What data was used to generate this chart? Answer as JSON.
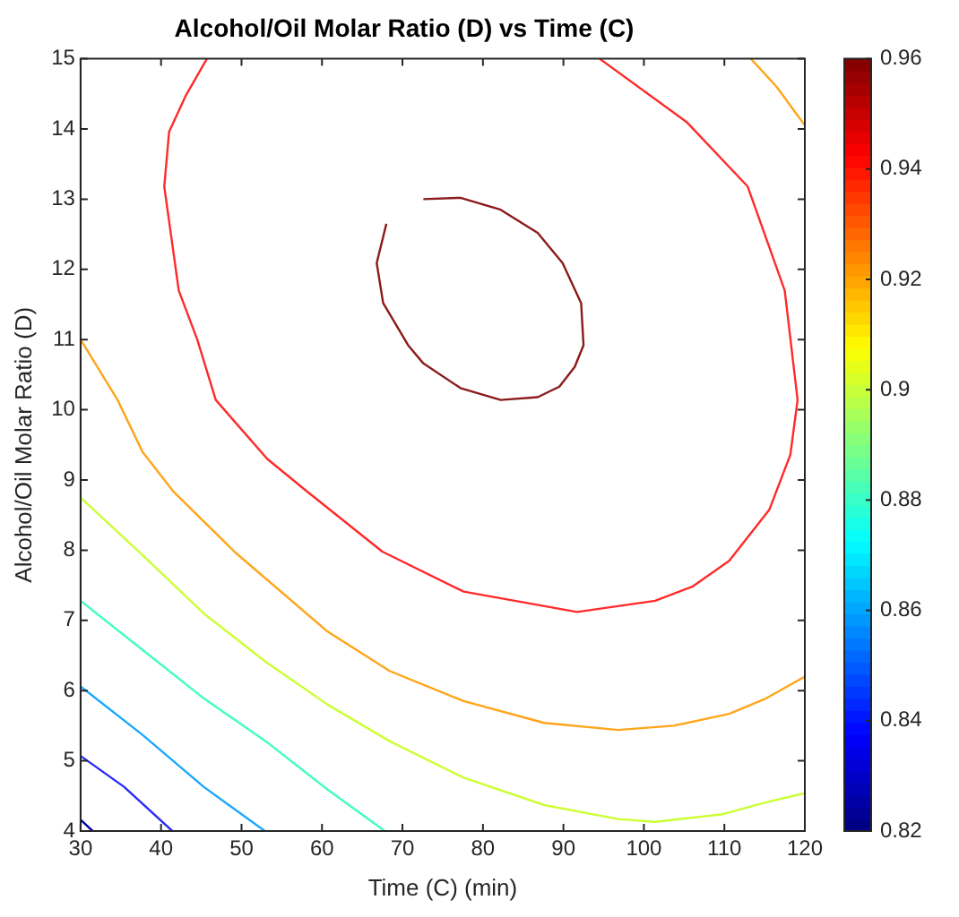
{
  "chart_data": {
    "type": "line",
    "title": "Alcohol/Oil Molar Ratio (D) vs Time (C)",
    "xlabel": "Time (C) (min)",
    "ylabel": "Alcohol/Oil Molar Ratio (D)",
    "xlim": [
      30,
      120
    ],
    "xticks": [
      30,
      40,
      50,
      60,
      70,
      80,
      90,
      100,
      110,
      120
    ],
    "ylim": [
      4,
      15
    ],
    "yticks": [
      4,
      5,
      6,
      7,
      8,
      9,
      10,
      11,
      12,
      13,
      14,
      15
    ],
    "clim": [
      0.82,
      0.96
    ],
    "cticks": [
      0.82,
      0.84,
      0.86,
      0.88,
      0.9,
      0.92,
      0.94,
      0.96
    ],
    "grid": false,
    "legend": false,
    "marker": "none",
    "series": [
      {
        "color": "#0000aa",
        "x": [
          30,
          31.5
        ],
        "values": [
          4.16,
          4.0
        ]
      },
      {
        "color": "#2a2aff",
        "x": [
          30,
          35.4,
          41.4
        ],
        "values": [
          5.07,
          4.63,
          4.0
        ]
      },
      {
        "color": "#1aa8ff",
        "x": [
          30,
          37.7,
          45.3,
          52.9
        ],
        "values": [
          6.06,
          5.37,
          4.63,
          4.0
        ]
      },
      {
        "color": "#40ffbf",
        "x": [
          30,
          37.7,
          45.3,
          53.0,
          60.7,
          67.8
        ],
        "values": [
          7.28,
          6.58,
          5.89,
          5.28,
          4.59,
          4.0
        ]
      },
      {
        "color": "#ccff33",
        "x": [
          30,
          37.7,
          45.3,
          53.0,
          60.7,
          68.4,
          77.6,
          87.6,
          96.8,
          101.4,
          109.8,
          115.2,
          120
        ],
        "values": [
          8.75,
          7.93,
          7.1,
          6.41,
          5.8,
          5.28,
          4.76,
          4.37,
          4.17,
          4.13,
          4.24,
          4.41,
          4.54
        ]
      },
      {
        "color": "#ffa51a",
        "x": [
          30,
          34.6,
          37.7,
          41.5,
          49.2,
          60.7,
          68.4,
          77.6,
          87.6,
          96.8,
          103.7,
          110.6,
          115.2,
          120
        ],
        "values": [
          11.0,
          10.14,
          9.4,
          8.84,
          7.97,
          6.84,
          6.28,
          5.85,
          5.54,
          5.44,
          5.5,
          5.67,
          5.89,
          6.2
        ]
      },
      {
        "color": "#ffa51a",
        "x": [
          113.3,
          116.5,
          120
        ],
        "values": [
          15,
          14.6,
          14.05
        ]
      },
      {
        "color": "#ff2a2a",
        "x": [
          45.7,
          43.1,
          41.0,
          40.4,
          42.2,
          44.5,
          46.8,
          53.2,
          58.1,
          67.5,
          77.6,
          91.7,
          101.4,
          106,
          110.6,
          115.6,
          118.2,
          119.1,
          117.5,
          112.9,
          105.3,
          94.5
        ],
        "values": [
          15,
          14.48,
          13.96,
          13.18,
          11.7,
          11.0,
          10.14,
          9.3,
          8.84,
          7.98,
          7.41,
          7.12,
          7.28,
          7.48,
          7.85,
          8.58,
          9.36,
          10.14,
          11.7,
          13.18,
          14.1,
          15
        ]
      },
      {
        "color": "#8b1a1a",
        "x": [
          72.6,
          77.2,
          82.2,
          86.8,
          89.9,
          92.2,
          92.5,
          91.4,
          89.5,
          86.8,
          82.2,
          77.2,
          72.6,
          70.7,
          67.6,
          66.8,
          68.0
        ],
        "values": [
          13.0,
          13.02,
          12.85,
          12.52,
          12.09,
          11.52,
          10.92,
          10.61,
          10.33,
          10.18,
          10.14,
          10.31,
          10.66,
          10.92,
          11.52,
          12.09,
          12.65
        ]
      }
    ]
  }
}
